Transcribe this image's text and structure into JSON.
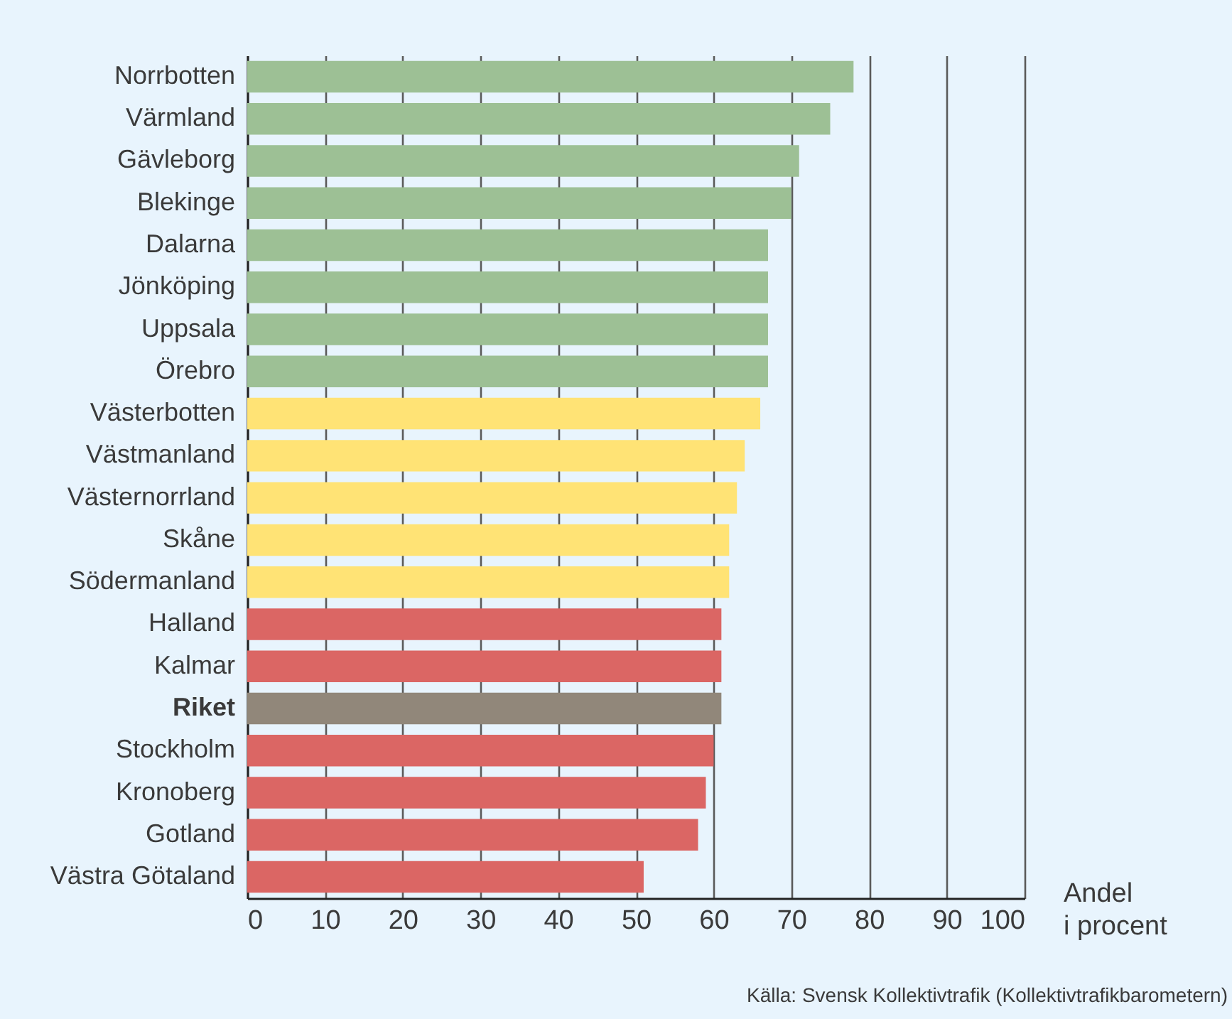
{
  "chart_data": {
    "type": "bar",
    "orientation": "horizontal",
    "categories": [
      "Norrbotten",
      "Värmland",
      "Gävleborg",
      "Blekinge",
      "Dalarna",
      "Jönköping",
      "Uppsala",
      "Örebro",
      "Västerbotten",
      "Västmanland",
      "Västernorrland",
      "Skåne",
      "Södermanland",
      "Halland",
      "Kalmar",
      "Riket",
      "Stockholm",
      "Kronoberg",
      "Gotland",
      "Västra Götaland"
    ],
    "values": [
      78,
      75,
      71,
      70,
      67,
      67,
      67,
      67,
      66,
      64,
      63,
      62,
      62,
      61,
      61,
      61,
      60,
      59,
      58,
      51
    ],
    "colors": [
      "#9dc095",
      "#9dc095",
      "#9dc095",
      "#9dc095",
      "#9dc095",
      "#9dc095",
      "#9dc095",
      "#9dc095",
      "#ffe375",
      "#ffe375",
      "#ffe375",
      "#ffe375",
      "#ffe375",
      "#db6664",
      "#db6664",
      "#91877a",
      "#db6664",
      "#db6664",
      "#db6664",
      "#db6664"
    ],
    "xlim": [
      0,
      100
    ],
    "xticks": [
      0,
      10,
      20,
      30,
      40,
      50,
      60,
      70,
      80,
      90,
      100
    ],
    "xlabel": "Andel\ni procent",
    "grid": "x",
    "annotations": [
      "Källa: Svensk Kollektivtrafik (Kollektivtrafikbarometern)"
    ]
  }
}
